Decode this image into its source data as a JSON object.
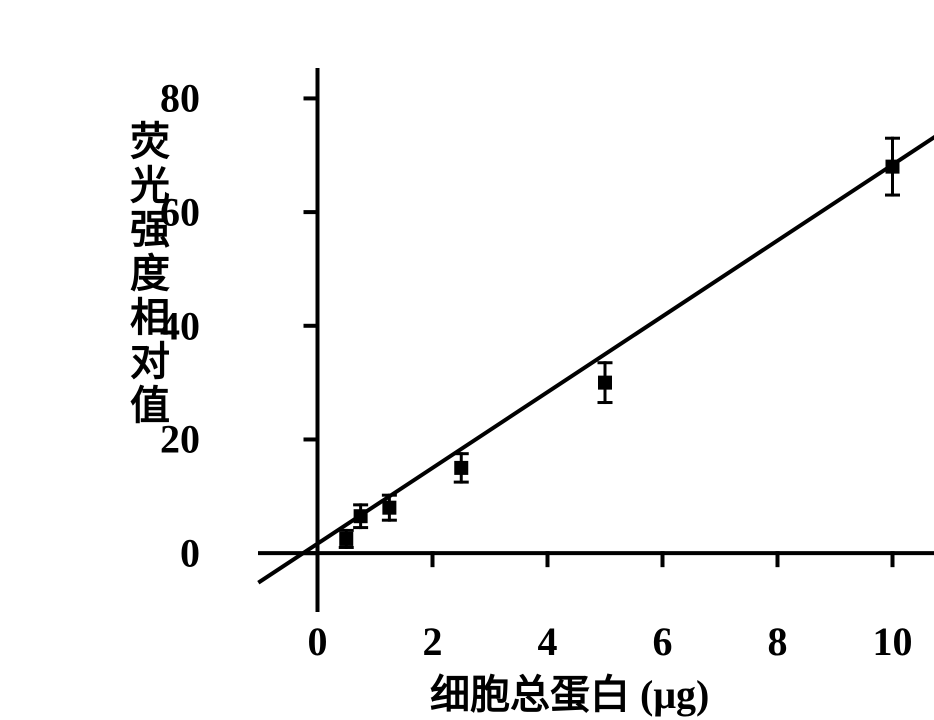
{
  "chart": {
    "type": "scatter",
    "background_color": "#ffffff",
    "axis_color": "#000000",
    "axis_line_width": 4,
    "tick_length": 12,
    "ylabel": "荧光强度相对值",
    "xlabel": "细胞总蛋白",
    "xlabel_unit_prefix": "(",
    "xlabel_unit": "μg",
    "xlabel_unit_suffix": ")",
    "label_fontsize": 40,
    "tick_fontsize": 40,
    "xlim": [
      -1,
      11
    ],
    "ylim": [
      -10,
      85
    ],
    "xticks": [
      0,
      2,
      4,
      6,
      8,
      10
    ],
    "yticks": [
      0,
      20,
      40,
      60,
      80
    ],
    "regression_line": {
      "x1": -1,
      "y1": -5,
      "x2": 11,
      "y2": 75,
      "color": "#000000",
      "width": 4
    },
    "marker_color": "#000000",
    "marker_size": 14,
    "errorbar_color": "#000000",
    "errorbar_width": 3,
    "errorbar_cap": 12,
    "data": [
      {
        "x": 0.5,
        "y": 2.5,
        "err": 1.5
      },
      {
        "x": 0.75,
        "y": 6.5,
        "err": 2.0
      },
      {
        "x": 1.25,
        "y": 8.0,
        "err": 2.2
      },
      {
        "x": 2.5,
        "y": 15.0,
        "err": 2.5
      },
      {
        "x": 5.0,
        "y": 30.0,
        "err": 3.5
      },
      {
        "x": 10.0,
        "y": 68.0,
        "err": 5.0
      }
    ]
  }
}
